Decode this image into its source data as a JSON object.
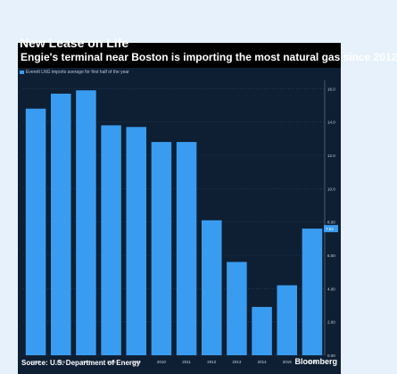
{
  "chart_data": {
    "type": "bar",
    "title": "New Lease on Life",
    "subtitle": "Engie's terminal near Boston is importing the most natural gas since 2012",
    "legend": [
      {
        "label": "Everett LNG imports average for first half of the year"
      }
    ],
    "categories": [
      "2005",
      "2006",
      "2007",
      "2008",
      "2009",
      "2010",
      "2011",
      "2012",
      "2013",
      "2014",
      "2015",
      "2016"
    ],
    "values": [
      14.8,
      15.7,
      15.9,
      13.8,
      13.7,
      12.8,
      12.8,
      8.1,
      5.6,
      2.9,
      4.2,
      7.6
    ],
    "last_value_label": "7.62",
    "y_ticks": [
      "0.00",
      "2.00",
      "4.00",
      "6.00",
      "8.00",
      "10.0",
      "12.0",
      "14.0",
      "16.0"
    ],
    "ylim": [
      0,
      16.5
    ],
    "colors": {
      "bar": "#3a9cf0",
      "background": "#0e1f33",
      "grid": "#2a4a6e"
    },
    "source": "Source: U.S. Department of Energy",
    "brand": "Bloomberg"
  }
}
